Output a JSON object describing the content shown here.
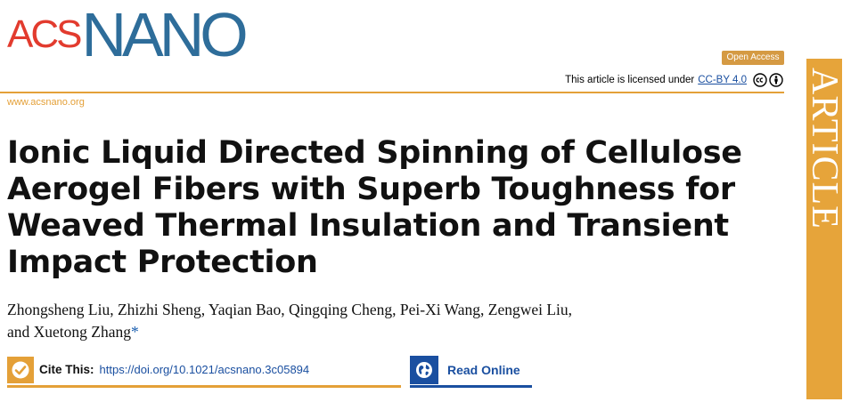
{
  "journal": {
    "logo_acs": "ACS",
    "logo_nano": "NANO",
    "website": "www.acsnano.org",
    "side_label": "ARTICLE"
  },
  "access": {
    "badge": "Open Access",
    "license_prefix": "This article is licensed under",
    "license_link": "CC-BY 4.0"
  },
  "article": {
    "title": "Ionic Liquid Directed Spinning of Cellulose Aerogel Fibers with Superb Toughness for Weaved Thermal Insulation and Transient Impact Protection",
    "authors_line1": "Zhongsheng Liu, Zhizhi Sheng, Yaqian Bao, Qingqing Cheng, Pei-Xi Wang, Zengwei Liu,",
    "authors_line2": "and Xuetong Zhang",
    "corresponding_mark": "*"
  },
  "cite": {
    "label": "Cite This:",
    "doi_link": "https://doi.org/10.1021/acsnano.3c05894"
  },
  "read": {
    "label": "Read Online"
  },
  "colors": {
    "orange": "#e4a038",
    "blue": "#1a4fa0",
    "logo_red": "#e23b2e",
    "logo_blue": "#2e6d9a"
  },
  "icons": [
    "checkmark-icon",
    "globe-icon",
    "cc-icon",
    "attribution-icon"
  ]
}
